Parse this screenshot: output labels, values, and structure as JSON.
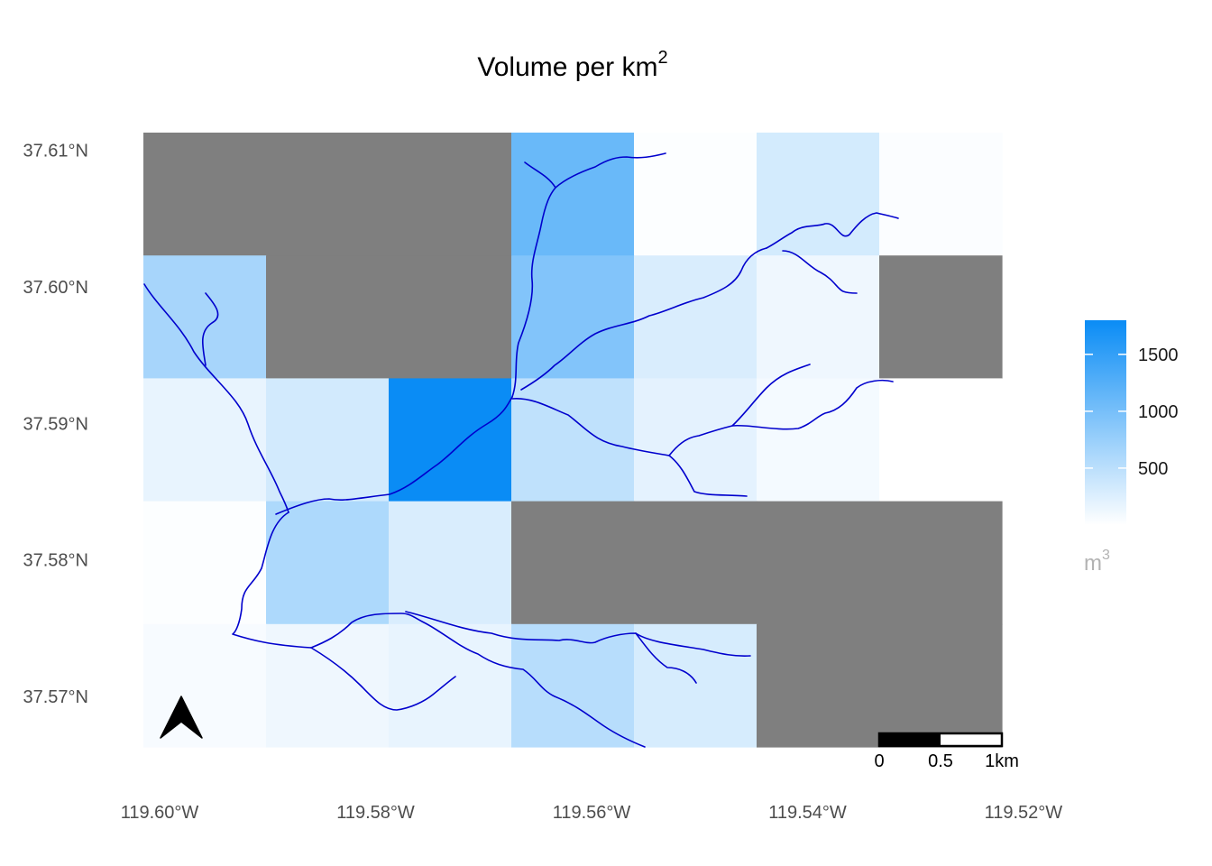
{
  "title": {
    "text": "Volume per km",
    "superscript": "2"
  },
  "legend": {
    "title": "m",
    "title_superscript": "3",
    "min": 0,
    "max": 1800,
    "ticks": [
      {
        "value": 500,
        "label": "500"
      },
      {
        "value": 1000,
        "label": "1000"
      },
      {
        "value": 1500,
        "label": "1500"
      }
    ],
    "low_color": "#ffffff",
    "high_color": "#0a8cf5"
  },
  "axes": {
    "lon_range": [
      -119.6015,
      -119.522
    ],
    "lat_range": [
      37.5663,
      37.6113
    ],
    "lat_ticks": [
      {
        "value": 37.61,
        "label": "37.61°N"
      },
      {
        "value": 37.6,
        "label": "37.60°N"
      },
      {
        "value": 37.59,
        "label": "37.59°N"
      },
      {
        "value": 37.58,
        "label": "37.58°N"
      },
      {
        "value": 37.57,
        "label": "37.57°N"
      }
    ],
    "lon_ticks": [
      {
        "value": -119.6,
        "label": "119.60°W"
      },
      {
        "value": -119.58,
        "label": "119.58°W"
      },
      {
        "value": -119.56,
        "label": "119.56°W"
      },
      {
        "value": -119.54,
        "label": "119.54°W"
      },
      {
        "value": -119.52,
        "label": "119.52°W"
      }
    ]
  },
  "scale_bar": {
    "labels": [
      "0",
      "0.5",
      "1km"
    ]
  },
  "north_arrow": {
    "icon": "north-arrow-icon"
  },
  "chart_data": {
    "type": "heatmap",
    "title": "Volume per km²",
    "value_unit": "m³",
    "na_color": "#7f7f7f",
    "stream_color": "#0000cd",
    "grid_columns": 7,
    "grid_rows": 5,
    "cells": [
      [
        null,
        null,
        null,
        1100,
        20,
        320,
        30
      ],
      [
        650,
        null,
        null,
        920,
        280,
        120,
        null
      ],
      [
        170,
        330,
        1800,
        470,
        200,
        80,
        0
      ],
      [
        20,
        600,
        280,
        null,
        null,
        null,
        null
      ],
      [
        60,
        120,
        170,
        530,
        300,
        null,
        null
      ]
    ]
  }
}
